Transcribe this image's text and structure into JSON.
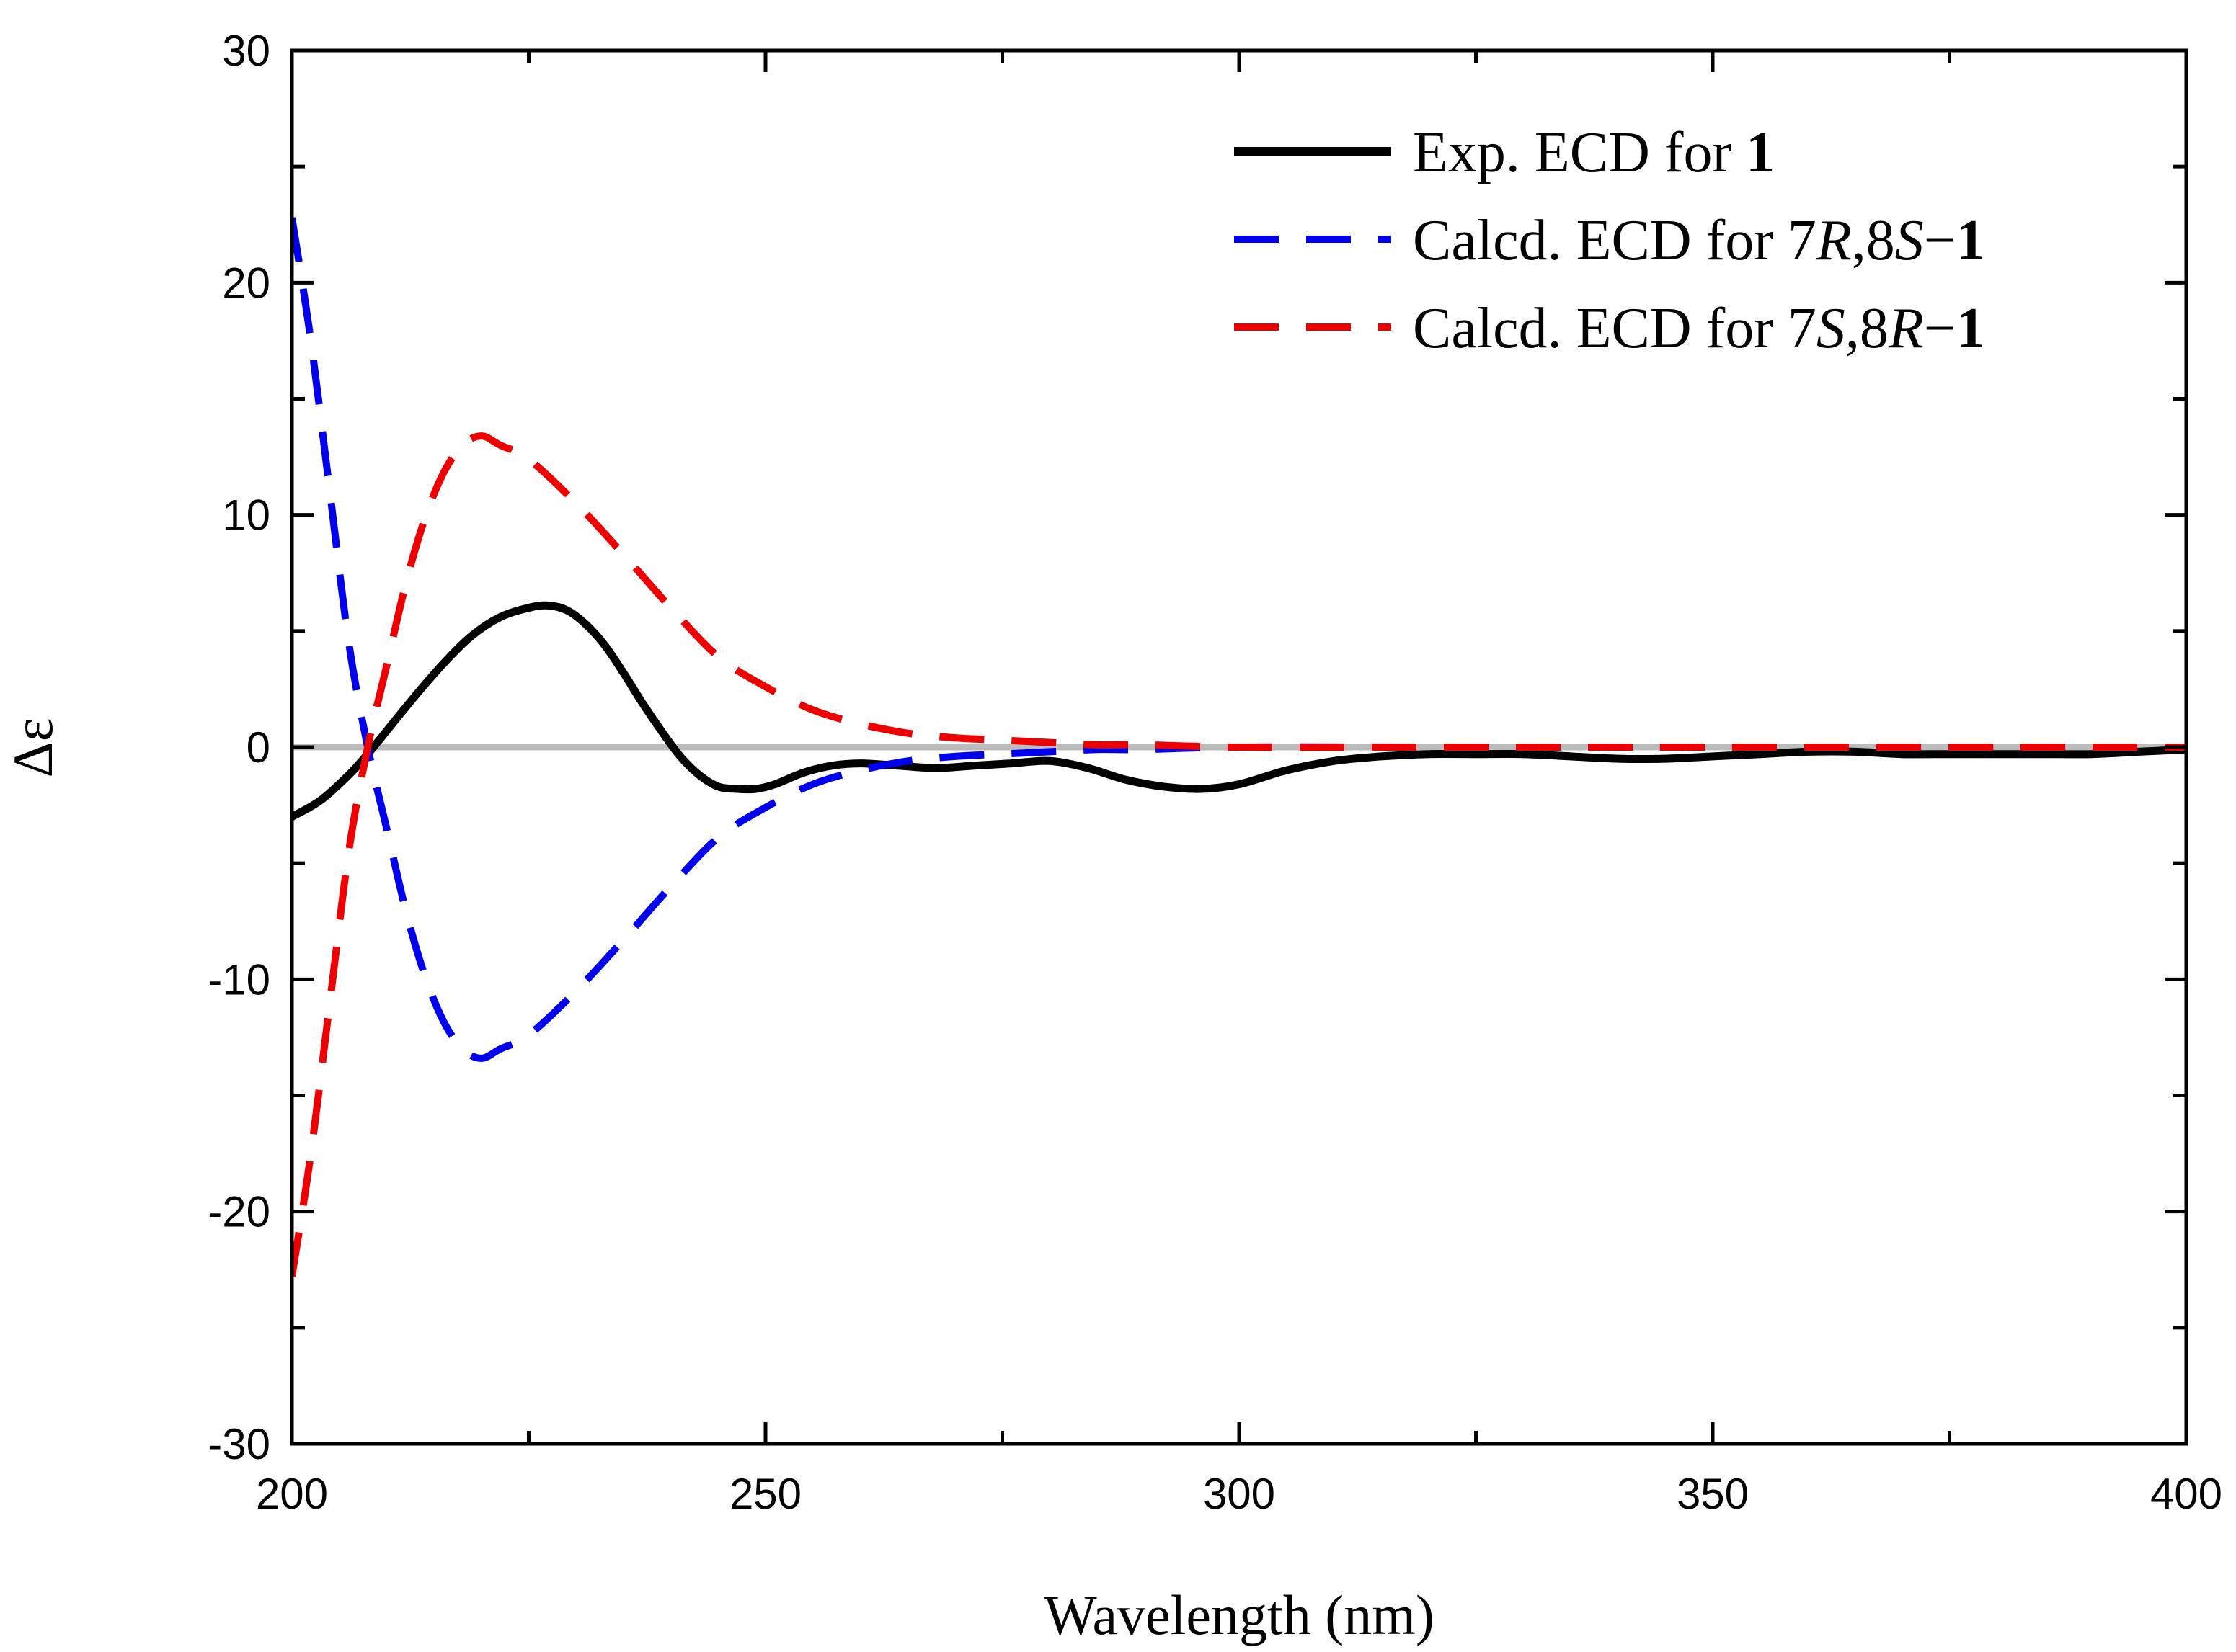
{
  "chart_data": {
    "type": "line",
    "title": "",
    "xlabel": "Wavelength (nm)",
    "ylabel": "Δε",
    "xlim": [
      200,
      400
    ],
    "ylim": [
      -30,
      30
    ],
    "xticks": [
      200,
      250,
      300,
      350,
      400
    ],
    "xtick_labels": [
      "200",
      "250",
      "300",
      "350",
      "400"
    ],
    "yticks": [
      -30,
      -20,
      -10,
      0,
      10,
      20,
      30
    ],
    "ytick_labels": [
      "-30",
      "-20",
      "-10",
      "0",
      "10",
      "20",
      "30"
    ],
    "grid": false,
    "legend_position": "top-right",
    "zero_line_color": "#bbbbbb",
    "series": [
      {
        "name": "Exp. ECD for 1",
        "legend": {
          "prefix": "Exp. ECD for ",
          "bold": "1"
        },
        "color": "#000000",
        "style": "solid",
        "x": [
          200,
          203,
          206,
          208,
          210,
          213,
          216,
          219,
          222,
          225,
          227,
          229,
          231,
          233,
          235,
          237,
          239,
          241,
          243,
          245,
          247,
          249,
          251,
          254,
          257,
          260,
          264,
          268,
          272,
          276,
          280,
          284,
          288,
          292,
          296,
          300,
          305,
          310,
          315,
          320,
          325,
          330,
          335,
          340,
          345,
          350,
          355,
          360,
          365,
          370,
          375,
          380,
          385,
          390,
          395,
          400
        ],
        "y": [
          -3.0,
          -2.3,
          -1.2,
          -0.3,
          0.7,
          2.2,
          3.6,
          4.8,
          5.6,
          6.0,
          6.1,
          5.9,
          5.3,
          4.4,
          3.2,
          1.9,
          0.7,
          -0.4,
          -1.2,
          -1.7,
          -1.8,
          -1.8,
          -1.6,
          -1.1,
          -0.8,
          -0.7,
          -0.8,
          -0.9,
          -0.8,
          -0.7,
          -0.6,
          -0.9,
          -1.4,
          -1.7,
          -1.8,
          -1.6,
          -1.0,
          -0.6,
          -0.4,
          -0.3,
          -0.3,
          -0.3,
          -0.4,
          -0.5,
          -0.5,
          -0.4,
          -0.3,
          -0.2,
          -0.2,
          -0.3,
          -0.3,
          -0.3,
          -0.3,
          -0.3,
          -0.2,
          -0.1
        ]
      },
      {
        "name": "Calcd. ECD for 7R,8S−1",
        "legend": {
          "prefix": "Calcd. ECD for 7",
          "i1": "R",
          "mid": ",8",
          "i2": "S",
          "dash": "−",
          "bold": "1"
        },
        "color": "#0000ee",
        "style": "dashed",
        "x": [
          200,
          202,
          204,
          206,
          208,
          210,
          212,
          214,
          216,
          218,
          220,
          222,
          225,
          230,
          235,
          240,
          245,
          250,
          255,
          260,
          265,
          270,
          275,
          280,
          285,
          290,
          300,
          320,
          350,
          400
        ],
        "y": [
          22.8,
          17.5,
          11.0,
          4.5,
          0.0,
          -3.5,
          -7.0,
          -9.8,
          -11.8,
          -13.0,
          -13.4,
          -13.0,
          -12.4,
          -10.5,
          -8.3,
          -6.0,
          -3.9,
          -2.6,
          -1.6,
          -1.0,
          -0.6,
          -0.4,
          -0.3,
          -0.2,
          -0.1,
          -0.1,
          0.0,
          0.0,
          0.0,
          0.0
        ]
      },
      {
        "name": "Calcd. ECD for 7S,8R−1",
        "legend": {
          "prefix": "Calcd. ECD for 7",
          "i1": "S",
          "mid": ",8",
          "i2": "R",
          "dash": "−",
          "bold": "1"
        },
        "color": "#ee0000",
        "style": "dashed",
        "x": [
          200,
          202,
          204,
          206,
          208,
          210,
          212,
          214,
          216,
          218,
          220,
          222,
          225,
          230,
          235,
          240,
          245,
          250,
          255,
          260,
          265,
          270,
          275,
          280,
          285,
          290,
          300,
          320,
          350,
          400
        ],
        "y": [
          -22.8,
          -17.5,
          -11.0,
          -4.5,
          0.0,
          3.5,
          7.0,
          9.8,
          11.8,
          13.0,
          13.4,
          13.0,
          12.4,
          10.5,
          8.3,
          6.0,
          3.9,
          2.6,
          1.6,
          1.0,
          0.6,
          0.4,
          0.3,
          0.2,
          0.1,
          0.1,
          0.0,
          0.0,
          0.0,
          0.0
        ]
      }
    ]
  }
}
